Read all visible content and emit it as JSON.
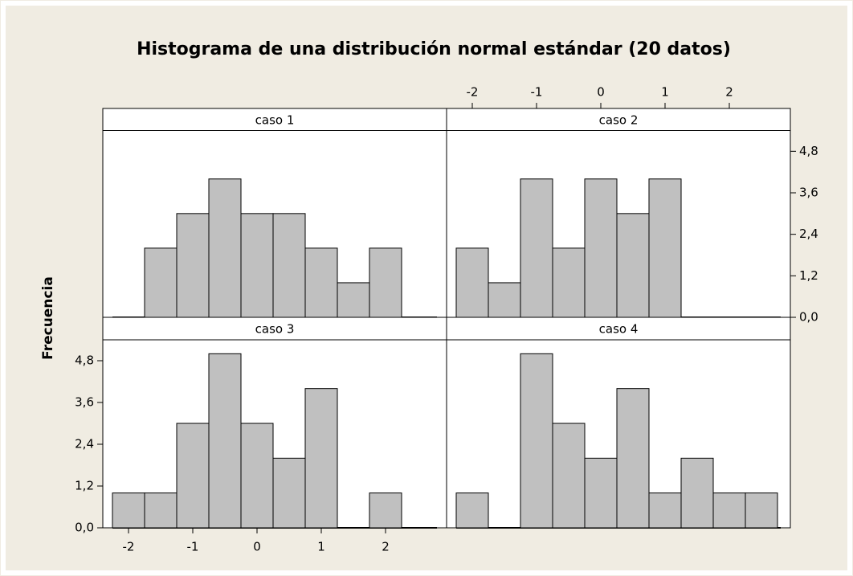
{
  "chart_data": {
    "type": "histogram",
    "title": "Histograma de una distribución normal estándar (20 datos)",
    "y_label": "Frecuencia",
    "color": "#c0c0c0",
    "xlim": [
      -2.4,
      2.95
    ],
    "xticks": [
      -2,
      -1,
      0,
      1,
      2
    ],
    "ylim": [
      0,
      5.4
    ],
    "yticks": [
      {
        "value": 0,
        "label": "0,0"
      },
      {
        "value": 1.2,
        "label": "1,2"
      },
      {
        "value": 2.4,
        "label": "2,4"
      },
      {
        "value": 3.6,
        "label": "3,6"
      },
      {
        "value": 4.8,
        "label": "4,8"
      }
    ],
    "panels": [
      {
        "name": "caso 1",
        "bins": [
          -1.75,
          -1.25,
          -0.75,
          -0.25,
          0.25,
          0.75,
          1.25,
          1.75,
          2.25
        ],
        "counts": [
          2,
          3,
          4,
          3,
          3,
          2,
          1,
          2
        ]
      },
      {
        "name": "caso 2",
        "bins": [
          -2.25,
          -1.75,
          -1.25,
          -0.75,
          -0.25,
          0.25,
          0.75,
          1.25
        ],
        "counts": [
          2,
          1,
          4,
          2,
          4,
          3,
          4
        ]
      },
      {
        "name": "caso 3",
        "bins": [
          -2.25,
          -1.75,
          -1.25,
          -0.75,
          -0.25,
          0.25,
          0.75,
          1.25,
          1.75,
          2.25
        ],
        "counts": [
          1,
          1,
          3,
          5,
          3,
          2,
          4,
          0,
          1
        ]
      },
      {
        "name": "caso 4",
        "bins": [
          -2.25,
          -1.75,
          -1.25,
          -0.75,
          -0.25,
          0.25,
          0.75,
          1.25,
          1.75,
          2.25,
          2.75
        ],
        "counts": [
          1,
          0,
          5,
          3,
          2,
          4,
          1,
          2,
          1,
          1
        ]
      }
    ]
  }
}
